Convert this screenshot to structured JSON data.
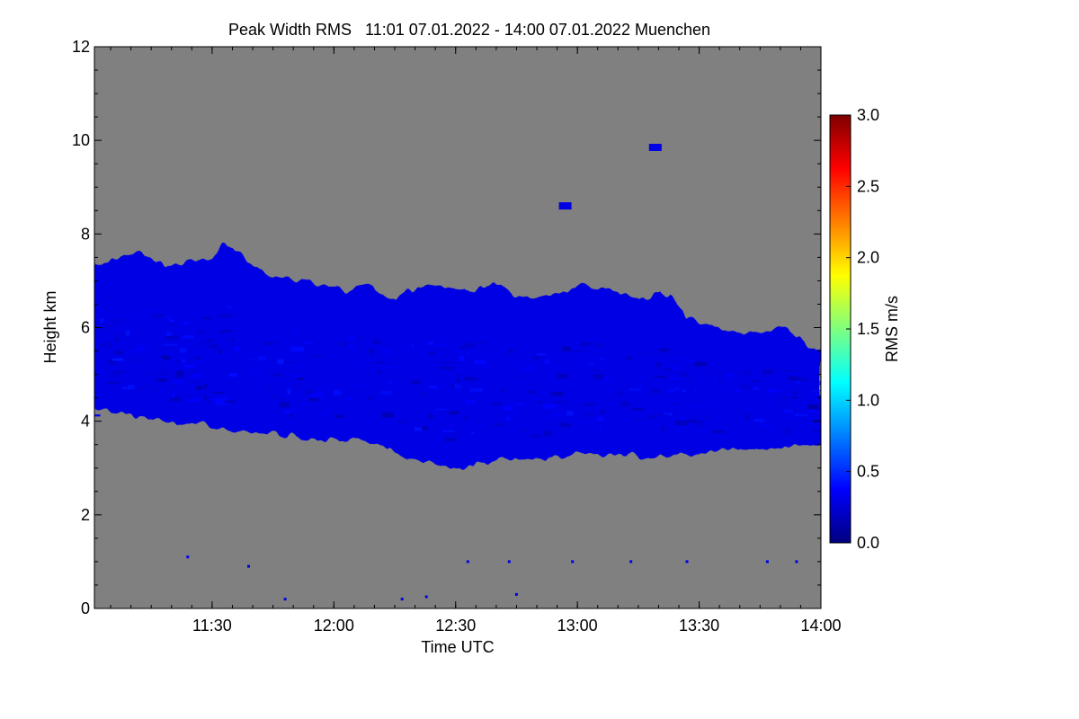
{
  "chart_data": {
    "type": "heatmap",
    "title": "Peak Width RMS   11:01 07.01.2022 - 14:00 07.01.2022 Muenchen",
    "xlabel": "Time UTC",
    "ylabel": "Height km",
    "x_ticks": [
      "11:30",
      "12:00",
      "12:30",
      "13:00",
      "13:30",
      "14:00"
    ],
    "x_tick_hours": [
      11.5,
      12.0,
      12.5,
      13.0,
      13.5,
      14.0
    ],
    "xlim_hours": [
      11.0167,
      14.0
    ],
    "y_ticks": [
      "0",
      "2",
      "4",
      "6",
      "8",
      "10",
      "12"
    ],
    "y_tick_values": [
      0,
      2,
      4,
      6,
      8,
      10,
      12
    ],
    "ylim": [
      0,
      12
    ],
    "background_color": "#808080",
    "colorbar": {
      "label": "RMS m/s",
      "range": [
        0.0,
        3.0
      ],
      "ticks": [
        "0.0",
        "0.5",
        "1.0",
        "1.5",
        "2.0",
        "2.5",
        "3.0"
      ],
      "tick_values": [
        0.0,
        0.5,
        1.0,
        1.5,
        2.0,
        2.5,
        3.0
      ],
      "colors": [
        "#00007f",
        "#0000ff",
        "#007fff",
        "#00ffff",
        "#7fff7f",
        "#ffff00",
        "#ff7f00",
        "#ff0000",
        "#7f0000"
      ]
    },
    "cloud_layer": {
      "typical_rms": 0.3,
      "top_km": [
        [
          11.02,
          7.3
        ],
        [
          11.1,
          7.5
        ],
        [
          11.2,
          7.6
        ],
        [
          11.3,
          7.3
        ],
        [
          11.4,
          7.4
        ],
        [
          11.5,
          7.5
        ],
        [
          11.55,
          7.8
        ],
        [
          11.65,
          7.4
        ],
        [
          11.75,
          7.1
        ],
        [
          11.85,
          7.0
        ],
        [
          11.95,
          6.9
        ],
        [
          12.05,
          6.8
        ],
        [
          12.15,
          6.9
        ],
        [
          12.25,
          6.6
        ],
        [
          12.35,
          6.9
        ],
        [
          12.45,
          6.9
        ],
        [
          12.55,
          6.8
        ],
        [
          12.65,
          6.9
        ],
        [
          12.75,
          6.7
        ],
        [
          12.85,
          6.6
        ],
        [
          12.95,
          6.8
        ],
        [
          13.05,
          6.9
        ],
        [
          13.15,
          6.8
        ],
        [
          13.25,
          6.6
        ],
        [
          13.35,
          6.8
        ],
        [
          13.45,
          6.2
        ],
        [
          13.55,
          6.0
        ],
        [
          13.65,
          5.9
        ],
        [
          13.75,
          5.9
        ],
        [
          13.85,
          6.0
        ],
        [
          13.95,
          5.6
        ],
        [
          14.0,
          5.5
        ]
      ],
      "base_km": [
        [
          11.02,
          4.3
        ],
        [
          11.1,
          4.2
        ],
        [
          11.2,
          4.1
        ],
        [
          11.3,
          4.0
        ],
        [
          11.4,
          3.95
        ],
        [
          11.5,
          3.9
        ],
        [
          11.6,
          3.8
        ],
        [
          11.7,
          3.8
        ],
        [
          11.8,
          3.7
        ],
        [
          11.9,
          3.6
        ],
        [
          12.0,
          3.6
        ],
        [
          12.1,
          3.6
        ],
        [
          12.2,
          3.5
        ],
        [
          12.3,
          3.2
        ],
        [
          12.4,
          3.1
        ],
        [
          12.5,
          3.0
        ],
        [
          12.6,
          3.1
        ],
        [
          12.7,
          3.2
        ],
        [
          12.8,
          3.2
        ],
        [
          12.9,
          3.2
        ],
        [
          13.0,
          3.3
        ],
        [
          13.1,
          3.3
        ],
        [
          13.2,
          3.3
        ],
        [
          13.3,
          3.2
        ],
        [
          13.4,
          3.3
        ],
        [
          13.5,
          3.3
        ],
        [
          13.6,
          3.4
        ],
        [
          13.7,
          3.4
        ],
        [
          13.8,
          3.4
        ],
        [
          13.9,
          3.5
        ],
        [
          14.0,
          3.5
        ]
      ]
    },
    "isolated_echoes": [
      {
        "time_hour": 12.95,
        "height_km": 8.6
      },
      {
        "time_hour": 13.32,
        "height_km": 9.85
      },
      {
        "time_hour": 11.4,
        "height_km": 1.1
      },
      {
        "time_hour": 11.65,
        "height_km": 0.9
      },
      {
        "time_hour": 11.8,
        "height_km": 0.2
      },
      {
        "time_hour": 12.28,
        "height_km": 0.2
      },
      {
        "time_hour": 12.38,
        "height_km": 0.25
      },
      {
        "time_hour": 12.55,
        "height_km": 1.0
      },
      {
        "time_hour": 12.72,
        "height_km": 1.0
      },
      {
        "time_hour": 12.75,
        "height_km": 0.3
      },
      {
        "time_hour": 12.98,
        "height_km": 1.0
      },
      {
        "time_hour": 13.22,
        "height_km": 1.0
      },
      {
        "time_hour": 13.45,
        "height_km": 1.0
      },
      {
        "time_hour": 13.78,
        "height_km": 1.0
      },
      {
        "time_hour": 13.9,
        "height_km": 1.0
      }
    ]
  }
}
